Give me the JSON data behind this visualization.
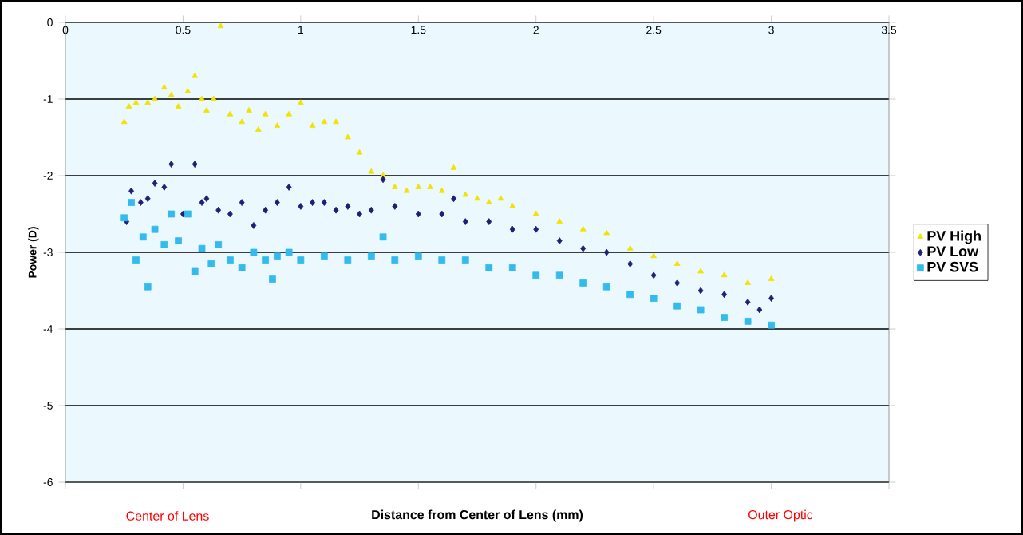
{
  "chart_data": {
    "type": "scatter",
    "xlabel": "Distance from Center of Lens (mm)",
    "ylabel": "Power (D)",
    "xlim": [
      0,
      3.5
    ],
    "xticks": [
      0,
      0.5,
      1,
      1.5,
      2,
      2.5,
      3,
      3.5
    ],
    "ylim": [
      -6,
      0
    ],
    "yticks": [
      -6,
      -5,
      -4,
      -3,
      -2,
      -1,
      0
    ],
    "grid": "y",
    "legend": "right",
    "annotations": [
      "Center of Lens",
      "Outer Optic"
    ],
    "series": [
      {
        "name": "PV High",
        "color": "#f0e400",
        "marker": "triangle",
        "x": [
          0.25,
          0.27,
          0.3,
          0.35,
          0.38,
          0.42,
          0.45,
          0.48,
          0.52,
          0.55,
          0.58,
          0.6,
          0.63,
          0.66,
          0.7,
          0.75,
          0.78,
          0.82,
          0.85,
          0.9,
          0.95,
          1.0,
          1.05,
          1.1,
          1.15,
          1.2,
          1.25,
          1.3,
          1.35,
          1.4,
          1.45,
          1.5,
          1.55,
          1.6,
          1.65,
          1.7,
          1.75,
          1.8,
          1.85,
          1.9,
          2.0,
          2.1,
          2.2,
          2.3,
          2.4,
          2.5,
          2.6,
          2.7,
          2.8,
          2.9,
          3.0
        ],
        "values": [
          -1.3,
          -1.1,
          -1.05,
          -1.05,
          -1.0,
          -0.85,
          -0.95,
          -1.1,
          -0.9,
          -0.7,
          -1.0,
          -1.15,
          -1.0,
          -0.05,
          -1.2,
          -1.3,
          -1.15,
          -1.4,
          -1.2,
          -1.35,
          -1.2,
          -1.05,
          -1.35,
          -1.3,
          -1.3,
          -1.5,
          -1.7,
          -1.95,
          -2.0,
          -2.15,
          -2.2,
          -2.15,
          -2.15,
          -2.2,
          -1.9,
          -2.25,
          -2.3,
          -2.35,
          -2.3,
          -2.4,
          -2.5,
          -2.6,
          -2.7,
          -2.75,
          -2.95,
          -3.05,
          -3.15,
          -3.25,
          -3.3,
          -3.4,
          -3.35
        ]
      },
      {
        "name": "PV Low",
        "color": "#1f1f78",
        "marker": "diamond",
        "x": [
          0.26,
          0.28,
          0.32,
          0.35,
          0.38,
          0.42,
          0.45,
          0.5,
          0.55,
          0.58,
          0.6,
          0.65,
          0.7,
          0.75,
          0.8,
          0.85,
          0.9,
          0.95,
          1.0,
          1.05,
          1.1,
          1.15,
          1.2,
          1.25,
          1.3,
          1.35,
          1.4,
          1.5,
          1.6,
          1.65,
          1.7,
          1.8,
          1.9,
          2.0,
          2.1,
          2.2,
          2.3,
          2.4,
          2.5,
          2.6,
          2.7,
          2.8,
          2.9,
          2.95,
          3.0
        ],
        "values": [
          -2.6,
          -2.2,
          -2.35,
          -2.3,
          -2.1,
          -2.15,
          -1.85,
          -2.5,
          -1.85,
          -2.35,
          -2.3,
          -2.45,
          -2.5,
          -2.35,
          -2.65,
          -2.45,
          -2.35,
          -2.15,
          -2.4,
          -2.35,
          -2.35,
          -2.45,
          -2.4,
          -2.5,
          -2.45,
          -2.05,
          -2.4,
          -2.5,
          -2.5,
          -2.3,
          -2.6,
          -2.6,
          -2.7,
          -2.7,
          -2.85,
          -2.95,
          -3.0,
          -3.15,
          -3.3,
          -3.4,
          -3.5,
          -3.55,
          -3.65,
          -3.75,
          -3.6
        ]
      },
      {
        "name": "PV SVS",
        "color": "#33bbee",
        "marker": "square",
        "x": [
          0.25,
          0.28,
          0.3,
          0.33,
          0.35,
          0.38,
          0.42,
          0.45,
          0.48,
          0.52,
          0.55,
          0.58,
          0.62,
          0.65,
          0.7,
          0.75,
          0.8,
          0.85,
          0.88,
          0.9,
          0.95,
          1.0,
          1.1,
          1.2,
          1.3,
          1.35,
          1.4,
          1.5,
          1.6,
          1.7,
          1.8,
          1.9,
          2.0,
          2.1,
          2.2,
          2.3,
          2.4,
          2.5,
          2.6,
          2.7,
          2.8,
          2.9,
          3.0
        ],
        "values": [
          -2.55,
          -2.35,
          -3.1,
          -2.8,
          -3.45,
          -2.7,
          -2.9,
          -2.5,
          -2.85,
          -2.5,
          -3.25,
          -2.95,
          -3.15,
          -2.9,
          -3.1,
          -3.2,
          -3.0,
          -3.1,
          -3.35,
          -3.05,
          -3.0,
          -3.1,
          -3.05,
          -3.1,
          -3.05,
          -2.8,
          -3.1,
          -3.05,
          -3.1,
          -3.1,
          -3.2,
          -3.2,
          -3.3,
          -3.3,
          -3.4,
          -3.45,
          -3.55,
          -3.6,
          -3.7,
          -3.75,
          -3.85,
          -3.9,
          -3.95
        ]
      }
    ]
  }
}
